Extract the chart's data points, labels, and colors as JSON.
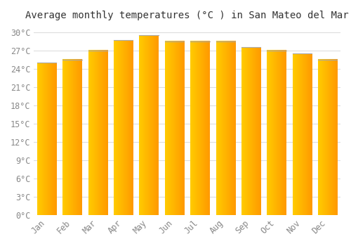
{
  "title": "Average monthly temperatures (°C ) in San Mateo del Mar",
  "months": [
    "Jan",
    "Feb",
    "Mar",
    "Apr",
    "May",
    "Jun",
    "Jul",
    "Aug",
    "Sep",
    "Oct",
    "Nov",
    "Dec"
  ],
  "values": [
    25.0,
    25.5,
    27.0,
    28.7,
    29.5,
    28.5,
    28.5,
    28.5,
    27.5,
    27.0,
    26.5,
    25.5
  ],
  "bar_color_left": "#FFCC00",
  "bar_color_right": "#FF9900",
  "bar_top_line_color": "#AAAAAA",
  "background_color": "#FFFFFF",
  "plot_bg_color": "#FFFFFF",
  "grid_color": "#DDDDDD",
  "ytick_values": [
    0,
    3,
    6,
    9,
    12,
    15,
    18,
    21,
    24,
    27,
    30
  ],
  "ytick_labels": [
    "0°C",
    "3°C",
    "6°C",
    "9°C",
    "12°C",
    "15°C",
    "18°C",
    "21°C",
    "24°C",
    "27°C",
    "30°C"
  ],
  "ylim": [
    0,
    31
  ],
  "title_fontsize": 10,
  "tick_fontsize": 8.5,
  "tick_color": "#888888",
  "title_color": "#333333",
  "title_font_family": "monospace",
  "bar_width": 0.75
}
